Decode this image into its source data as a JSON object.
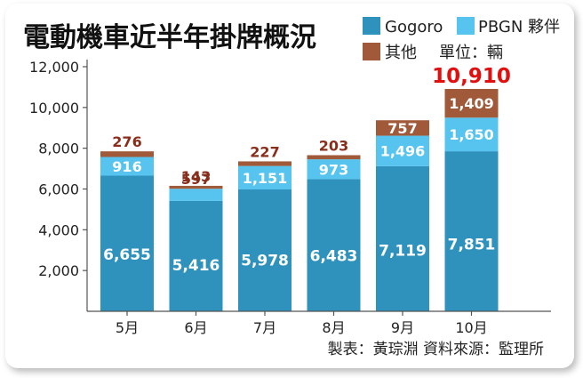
{
  "chart_data": {
    "type": "bar",
    "stacked": true,
    "title": "電動機車近半年掛牌概況",
    "unit_label": "單位：輛",
    "source": "製表：黃琮淵  資料來源：監理所",
    "categories": [
      "5月",
      "6月",
      "7月",
      "8月",
      "9月",
      "10月"
    ],
    "series": [
      {
        "name": "Gogoro",
        "values": [
          6655,
          5416,
          5978,
          6483,
          7119,
          7851
        ],
        "color": "#2f92bd"
      },
      {
        "name": "PBGN 夥伴",
        "values": [
          916,
          597,
          1151,
          973,
          1496,
          1650
        ],
        "color": "#56c4ee"
      },
      {
        "name": "其他",
        "values": [
          276,
          143,
          227,
          203,
          757,
          1409
        ],
        "color": "#a05a3a"
      }
    ],
    "value_labels": [
      [
        "6,655",
        "5,416",
        "5,978",
        "6,483",
        "7,119",
        "7,851"
      ],
      [
        "916",
        "597",
        "1,151",
        "973",
        "1,496",
        "1,650"
      ],
      [
        "276",
        "143",
        "227",
        "203",
        "757",
        "1,409"
      ]
    ],
    "totals": [
      null,
      null,
      null,
      null,
      null,
      10910
    ],
    "total_labels": [
      "",
      "",
      "",
      "",
      "",
      "10,910"
    ],
    "y_ticks": [
      2000,
      4000,
      6000,
      8000,
      10000,
      12000
    ],
    "y_tick_labels": [
      "2,000",
      "4,000",
      "6,000",
      "8,000",
      "10,000",
      "12,000"
    ],
    "ylim": [
      0,
      12000
    ],
    "grid": false,
    "legend_position": "top-right",
    "colors": {
      "label_above": "#8a2e1c",
      "total_highlight": "#e01010",
      "axis": "#555555",
      "text": "#222222"
    }
  }
}
